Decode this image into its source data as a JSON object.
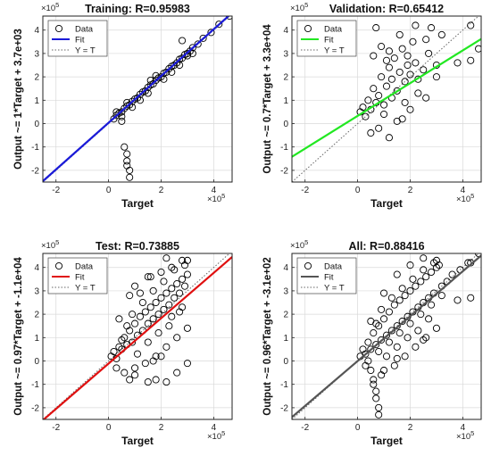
{
  "figure": {
    "colors": {
      "training": "#1a1ad8",
      "validation": "#22e822",
      "test": "#e01010",
      "all": "#555555",
      "identity": "#666666",
      "marker": "#000000"
    }
  },
  "chart_data": [
    {
      "type": "scatter",
      "title": "Training: R=0.95983",
      "xlabel": "Target",
      "ylabel": "Output ~= 1*Target + 3.7e+03",
      "axis_exponent": "×10",
      "axis_exponent_power": "5",
      "xlim": [
        -2.5,
        4.7
      ],
      "ylim": [
        -2.5,
        4.6
      ],
      "xticks": [
        -2,
        0,
        2,
        4
      ],
      "yticks": [
        -2,
        -1,
        0,
        1,
        2,
        3,
        4
      ],
      "grid": true,
      "legend": {
        "position": "top-left",
        "entries": [
          "Data",
          "Fit",
          "Y = T"
        ]
      },
      "fit": {
        "slope": 1.0,
        "intercept": 0.037,
        "color": "#1a1ad8"
      },
      "identity_line": true,
      "series": [
        {
          "name": "Data",
          "x": [
            0.2,
            0.3,
            0.4,
            0.5,
            0.6,
            0.7,
            0.8,
            0.9,
            1.0,
            1.1,
            1.2,
            1.3,
            1.4,
            1.5,
            1.6,
            1.7,
            1.8,
            1.9,
            2.0,
            2.1,
            2.2,
            2.3,
            2.4,
            2.5,
            2.6,
            2.7,
            2.8,
            2.9,
            3.0,
            3.1,
            3.2,
            3.4,
            3.6,
            3.9,
            4.2,
            4.6,
            0.3,
            0.5,
            0.7,
            0.9,
            1.2,
            1.5,
            1.8,
            2.1,
            2.4,
            2.7,
            3.0,
            0.6,
            0.7,
            0.7,
            0.7,
            0.8,
            0.8,
            2.8,
            3.2,
            0.5,
            1.6
          ],
          "y": [
            0.2,
            0.35,
            0.45,
            0.5,
            0.65,
            0.75,
            0.8,
            0.95,
            1.05,
            1.1,
            1.25,
            1.35,
            1.4,
            1.55,
            1.65,
            1.7,
            1.85,
            1.95,
            2.0,
            2.15,
            2.2,
            2.35,
            2.45,
            2.5,
            2.6,
            2.75,
            2.8,
            2.95,
            3.0,
            3.1,
            3.25,
            3.4,
            3.65,
            3.9,
            4.25,
            4.6,
            0.5,
            0.3,
            0.9,
            0.7,
            1.0,
            1.3,
            2.05,
            1.9,
            2.2,
            2.5,
            2.9,
            -1.0,
            -1.3,
            -1.6,
            -1.8,
            -2.0,
            -2.3,
            3.55,
            3.0,
            0.1,
            1.85
          ]
        }
      ]
    },
    {
      "type": "scatter",
      "title": "Validation: R=0.65412",
      "xlabel": "Target",
      "ylabel": "Output ~= 0.7*Target + 3.3e+04",
      "axis_exponent": "×10",
      "axis_exponent_power": "5",
      "xlim": [
        -2.5,
        4.7
      ],
      "ylim": [
        -2.5,
        4.6
      ],
      "xticks": [
        -2,
        0,
        2,
        4
      ],
      "yticks": [
        -2,
        -1,
        0,
        1,
        2,
        3,
        4
      ],
      "grid": true,
      "legend": {
        "position": "top-left",
        "entries": [
          "Data",
          "Fit",
          "Y = T"
        ]
      },
      "fit": {
        "slope": 0.7,
        "intercept": 0.33,
        "color": "#22e822"
      },
      "identity_line": true,
      "series": [
        {
          "name": "Data",
          "x": [
            0.1,
            0.2,
            0.3,
            0.4,
            0.5,
            0.6,
            0.7,
            0.8,
            0.9,
            1.0,
            1.1,
            1.2,
            1.3,
            1.4,
            1.5,
            1.6,
            1.7,
            1.8,
            1.9,
            2.0,
            2.1,
            2.2,
            2.3,
            2.5,
            2.7,
            2.8,
            3.0,
            3.2,
            0.5,
            0.8,
            1.0,
            1.2,
            1.5,
            1.8,
            2.0,
            2.3,
            0.6,
            0.9,
            1.1,
            1.3,
            1.6,
            1.9,
            2.2,
            2.6,
            3.0,
            3.8,
            4.3,
            4.3,
            4.6,
            0.7,
            1.2,
            1.7,
            2.6
          ],
          "y": [
            0.5,
            0.7,
            0.3,
            1.0,
            0.6,
            1.5,
            0.9,
            1.2,
            2.0,
            0.8,
            1.6,
            2.4,
            1.1,
            2.8,
            1.4,
            2.2,
            3.2,
            1.8,
            2.9,
            2.1,
            3.5,
            2.6,
            1.9,
            2.3,
            3.0,
            4.1,
            2.5,
            3.8,
            -0.4,
            -0.2,
            0.4,
            -0.6,
            0.1,
            0.9,
            0.6,
            1.3,
            2.9,
            3.3,
            2.7,
            1.9,
            3.8,
            2.5,
            4.2,
            3.6,
            2.0,
            2.6,
            4.2,
            2.7,
            3.2,
            4.1,
            3.1,
            0.2,
            1.1
          ]
        }
      ]
    },
    {
      "type": "scatter",
      "title": "Test: R=0.73885",
      "xlabel": "Target",
      "ylabel": "Output ~= 0.97*Target + -1.1e+04",
      "axis_exponent": "×10",
      "axis_exponent_power": "5",
      "xlim": [
        -2.5,
        4.7
      ],
      "ylim": [
        -2.5,
        4.6
      ],
      "xticks": [
        -2,
        0,
        2,
        4
      ],
      "yticks": [
        -2,
        -1,
        0,
        1,
        2,
        3,
        4
      ],
      "grid": true,
      "legend": {
        "position": "top-left",
        "entries": [
          "Data",
          "Fit",
          "Y = T"
        ]
      },
      "fit": {
        "slope": 0.97,
        "intercept": -0.11,
        "color": "#e01010"
      },
      "identity_line": true,
      "series": [
        {
          "name": "Data",
          "x": [
            0.1,
            0.2,
            0.3,
            0.4,
            0.5,
            0.6,
            0.7,
            0.8,
            0.9,
            1.0,
            1.1,
            1.2,
            1.3,
            1.4,
            1.5,
            1.6,
            1.7,
            1.8,
            1.9,
            2.0,
            2.1,
            2.2,
            2.3,
            2.4,
            2.5,
            2.6,
            2.7,
            2.8,
            2.9,
            3.0,
            0.3,
            0.5,
            0.7,
            0.9,
            1.1,
            1.3,
            1.5,
            1.7,
            1.9,
            2.1,
            2.3,
            2.5,
            2.7,
            2.9,
            0.6,
            1.0,
            1.4,
            1.8,
            2.2,
            2.6,
            3.0,
            0.4,
            0.8,
            1.2,
            1.6,
            2.0,
            2.4,
            2.8,
            1.8,
            2.2,
            2.6,
            3.0,
            0.8,
            1.0,
            1.5,
            1.7,
            2.0,
            2.4,
            2.8,
            1.0,
            1.5,
            2.2,
            3.0
          ],
          "y": [
            0.2,
            0.4,
            0.1,
            0.6,
            0.5,
            1.0,
            0.7,
            1.3,
            0.8,
            1.6,
            1.1,
            1.9,
            1.3,
            2.1,
            1.6,
            2.3,
            1.8,
            2.5,
            2.0,
            2.7,
            2.2,
            2.9,
            2.4,
            3.1,
            2.7,
            3.3,
            2.9,
            3.5,
            3.2,
            3.7,
            -0.3,
            0.9,
            1.5,
            2.0,
            0.3,
            2.5,
            0.8,
            3.0,
            1.2,
            3.4,
            1.5,
            3.9,
            2.1,
            4.1,
            -0.5,
            -0.3,
            -0.1,
            0.2,
            0.6,
            1.0,
            1.4,
            1.8,
            2.8,
            2.9,
            3.6,
            3.8,
            4.0,
            4.3,
            -0.8,
            -0.9,
            -0.5,
            -0.1,
            -0.8,
            -0.6,
            -0.9,
            0.0,
            0.2,
            1.9,
            2.3,
            3.2,
            3.6,
            4.4,
            4.3
          ]
        }
      ]
    },
    {
      "type": "scatter",
      "title": "All: R=0.88416",
      "xlabel": "Target",
      "ylabel": "Output ~= 0.96*Target + -3.1e+02",
      "axis_exponent": "×10",
      "axis_exponent_power": "5",
      "xlim": [
        -2.5,
        4.7
      ],
      "ylim": [
        -2.5,
        4.6
      ],
      "xticks": [
        -2,
        0,
        2,
        4
      ],
      "yticks": [
        -2,
        -1,
        0,
        1,
        2,
        3,
        4
      ],
      "grid": true,
      "legend": {
        "position": "top-left",
        "entries": [
          "Data",
          "Fit",
          "Y = T"
        ]
      },
      "fit": {
        "slope": 0.96,
        "intercept": -0.0031,
        "color": "#555555"
      },
      "identity_line": true,
      "series": [
        {
          "name": "Data",
          "x": [
            0.1,
            0.2,
            0.3,
            0.4,
            0.5,
            0.6,
            0.7,
            0.8,
            0.9,
            1.0,
            1.1,
            1.2,
            1.3,
            1.4,
            1.5,
            1.6,
            1.7,
            1.8,
            1.9,
            2.0,
            2.1,
            2.2,
            2.3,
            2.4,
            2.5,
            2.6,
            2.7,
            2.8,
            2.9,
            3.0,
            3.2,
            3.4,
            3.6,
            3.9,
            4.2,
            4.6,
            0.3,
            0.5,
            0.7,
            0.9,
            1.1,
            1.3,
            1.5,
            1.7,
            1.9,
            2.1,
            2.3,
            2.5,
            2.7,
            2.9,
            3.1,
            0.4,
            0.8,
            1.2,
            1.6,
            2.0,
            2.4,
            2.8,
            3.2,
            0.6,
            0.6,
            0.7,
            0.7,
            0.8,
            0.8,
            0.9,
            1.0,
            1.4,
            1.8,
            2.2,
            2.6,
            3.0,
            3.8,
            4.3,
            4.3,
            0.5,
            1.0,
            1.5,
            2.0,
            2.5,
            3.0,
            1.5,
            2.5
          ],
          "y": [
            0.2,
            0.5,
            0.3,
            0.8,
            0.5,
            1.2,
            0.7,
            1.5,
            0.9,
            1.8,
            1.1,
            2.1,
            1.3,
            2.4,
            1.5,
            2.6,
            1.7,
            2.8,
            1.9,
            3.0,
            2.1,
            3.2,
            2.3,
            3.4,
            2.5,
            3.6,
            2.7,
            3.8,
            2.9,
            4.0,
            3.2,
            3.4,
            3.7,
            3.9,
            4.2,
            4.6,
            -0.2,
            -0.4,
            1.6,
            2.2,
            0.2,
            2.7,
            0.6,
            3.1,
            1.0,
            3.5,
            1.3,
            3.9,
            1.8,
            4.2,
            4.1,
            0.0,
            0.4,
            0.8,
            1.2,
            1.6,
            2.0,
            2.4,
            2.8,
            -0.8,
            -1.0,
            -1.3,
            -1.6,
            -2.0,
            -2.3,
            -0.6,
            -0.4,
            -0.2,
            0.2,
            0.6,
            1.0,
            1.4,
            2.6,
            4.2,
            2.7,
            1.7,
            2.9,
            3.7,
            4.1,
            4.4,
            4.3,
            0.1,
            0.9
          ]
        }
      ]
    }
  ]
}
